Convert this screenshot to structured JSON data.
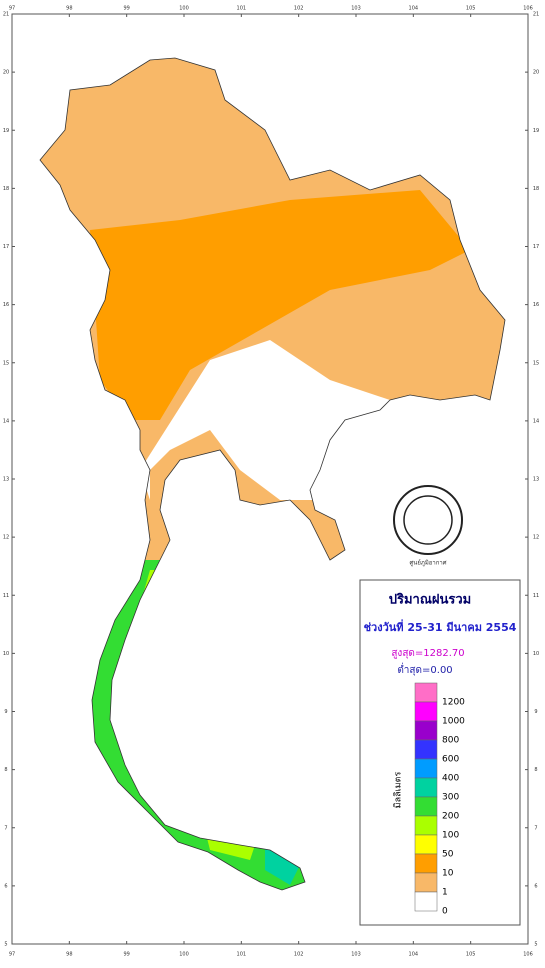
{
  "map": {
    "x_ticks": [
      97,
      98,
      99,
      100,
      101,
      102,
      103,
      104,
      105,
      106
    ],
    "y_ticks": [
      5,
      6,
      7,
      8,
      9,
      10,
      11,
      12,
      13,
      14,
      15,
      16,
      17,
      18,
      19,
      20,
      21
    ]
  },
  "logo": {
    "caption": "ศูนย์ภูมิอากาศ"
  },
  "legend": {
    "title": "ปริมาณฝนรวม",
    "period": "ช่วงวันที่ 25-31 มีนาคม 2554",
    "max": "สูงสุด=1282.70",
    "min": "ต่ำสุด=0.00",
    "unit": "มิลลิเมตร",
    "scale": [
      {
        "label": "1200",
        "color": "#ff6ec7"
      },
      {
        "label": "1000",
        "color": "#ff00ff"
      },
      {
        "label": "800",
        "color": "#9900cc"
      },
      {
        "label": "600",
        "color": "#3333ff"
      },
      {
        "label": "400",
        "color": "#009cff"
      },
      {
        "label": "300",
        "color": "#00d2a0"
      },
      {
        "label": "200",
        "color": "#33dd33"
      },
      {
        "label": "100",
        "color": "#aaff00"
      },
      {
        "label": "50",
        "color": "#ffff00"
      },
      {
        "label": "10",
        "color": "#ff9e00"
      },
      {
        "label": "1",
        "color": "#f8b868"
      },
      {
        "label": "0",
        "color": "#ffffff"
      }
    ]
  }
}
